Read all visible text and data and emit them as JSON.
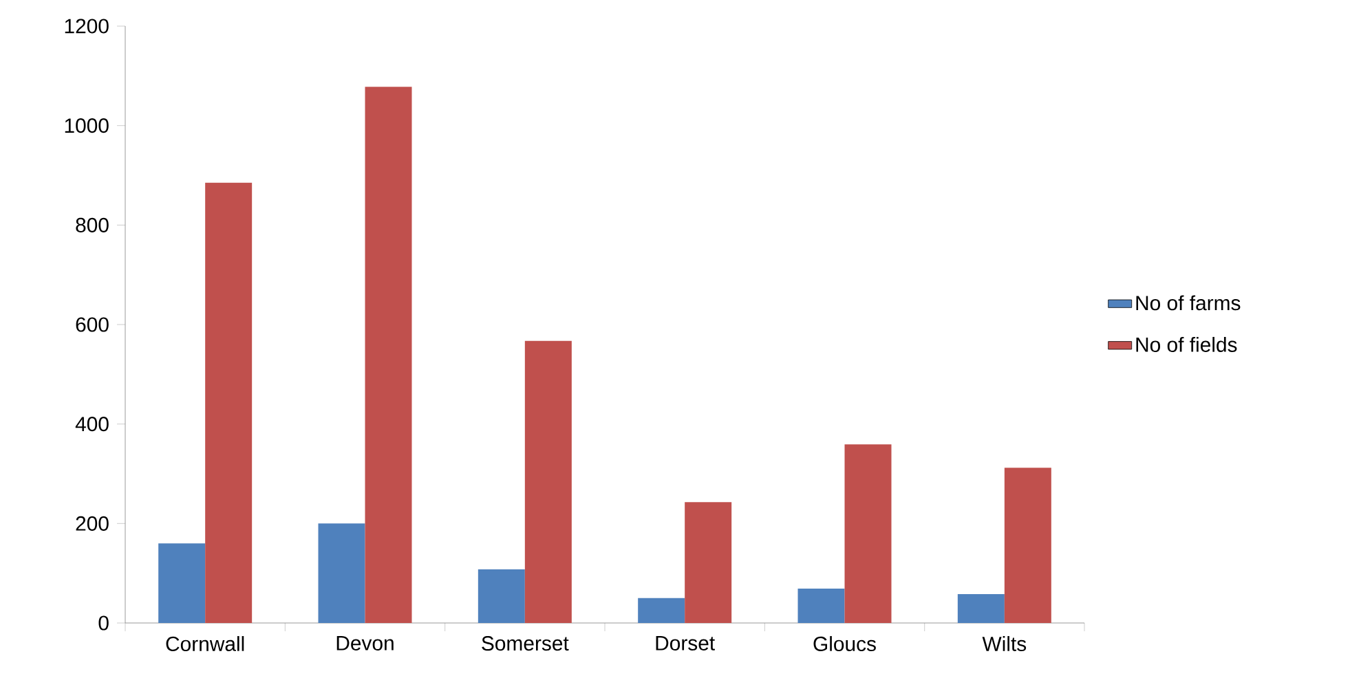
{
  "chart_data": {
    "type": "bar",
    "categories": [
      "Cornwall",
      "Devon",
      "Somerset",
      "Dorset",
      "Gloucs",
      "Wilts"
    ],
    "series": [
      {
        "name": "No of farms",
        "color": "#4f81bd",
        "values": [
          160,
          200,
          108,
          50,
          69,
          58
        ]
      },
      {
        "name": "No of fields",
        "color": "#c0504d",
        "values": [
          885,
          1078,
          567,
          243,
          359,
          312
        ]
      }
    ],
    "ylim": [
      0,
      1200
    ],
    "yticks": [
      0,
      200,
      400,
      600,
      800,
      1000,
      1200
    ],
    "grid": false,
    "legend": "right"
  }
}
